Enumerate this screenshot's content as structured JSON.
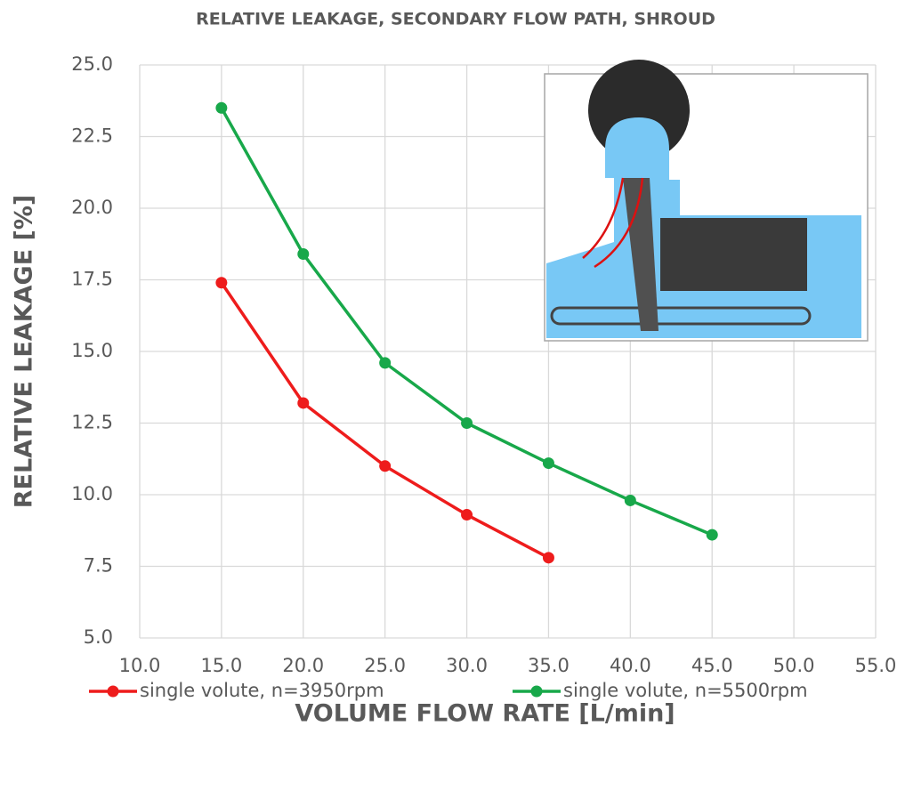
{
  "chart_data": {
    "type": "line",
    "title": "RELATIVE LEAKAGE, SECONDARY FLOW PATH, SHROUD",
    "x_label": "VOLUME FLOW RATE [L/min]",
    "y_label": "RELATIVE LEAKAGE [%]",
    "xlim": [
      10,
      55
    ],
    "xticks": [
      {
        "value": 10,
        "label": "10.0"
      },
      {
        "value": 15,
        "label": "15.0"
      },
      {
        "value": 20,
        "label": "20.0"
      },
      {
        "value": 25,
        "label": "25.0"
      },
      {
        "value": 30,
        "label": "30.0"
      },
      {
        "value": 35,
        "label": "35.0"
      },
      {
        "value": 40,
        "label": "40.0"
      },
      {
        "value": 45,
        "label": "45.0"
      },
      {
        "value": 50,
        "label": "50.0"
      },
      {
        "value": 55,
        "label": "55.0"
      }
    ],
    "ylim": [
      5,
      25
    ],
    "yticks": [
      {
        "value": 5,
        "label": "5.0"
      },
      {
        "value": 7.5,
        "label": "7.5"
      },
      {
        "value": 10,
        "label": "10.0"
      },
      {
        "value": 12.5,
        "label": "12.5"
      },
      {
        "value": 15,
        "label": "15.0"
      },
      {
        "value": 17.5,
        "label": "17.5"
      },
      {
        "value": 20,
        "label": "20.0"
      },
      {
        "value": 22.5,
        "label": "22.5"
      },
      {
        "value": 25,
        "label": "25.0"
      }
    ],
    "grid": true,
    "legend": "bottom",
    "series": [
      {
        "name": "single volute, n=3950rpm",
        "color": "#ee1c1c",
        "x": [
          15,
          20,
          25,
          30,
          35
        ],
        "values": [
          17.4,
          13.2,
          11.0,
          9.3,
          7.8
        ]
      },
      {
        "name": "single volute, n=5500rpm",
        "color": "#18a84a",
        "x": [
          15,
          20,
          25,
          30,
          35,
          40,
          45
        ],
        "values": [
          23.5,
          18.4,
          14.6,
          12.5,
          11.1,
          9.8,
          8.6
        ]
      }
    ]
  }
}
